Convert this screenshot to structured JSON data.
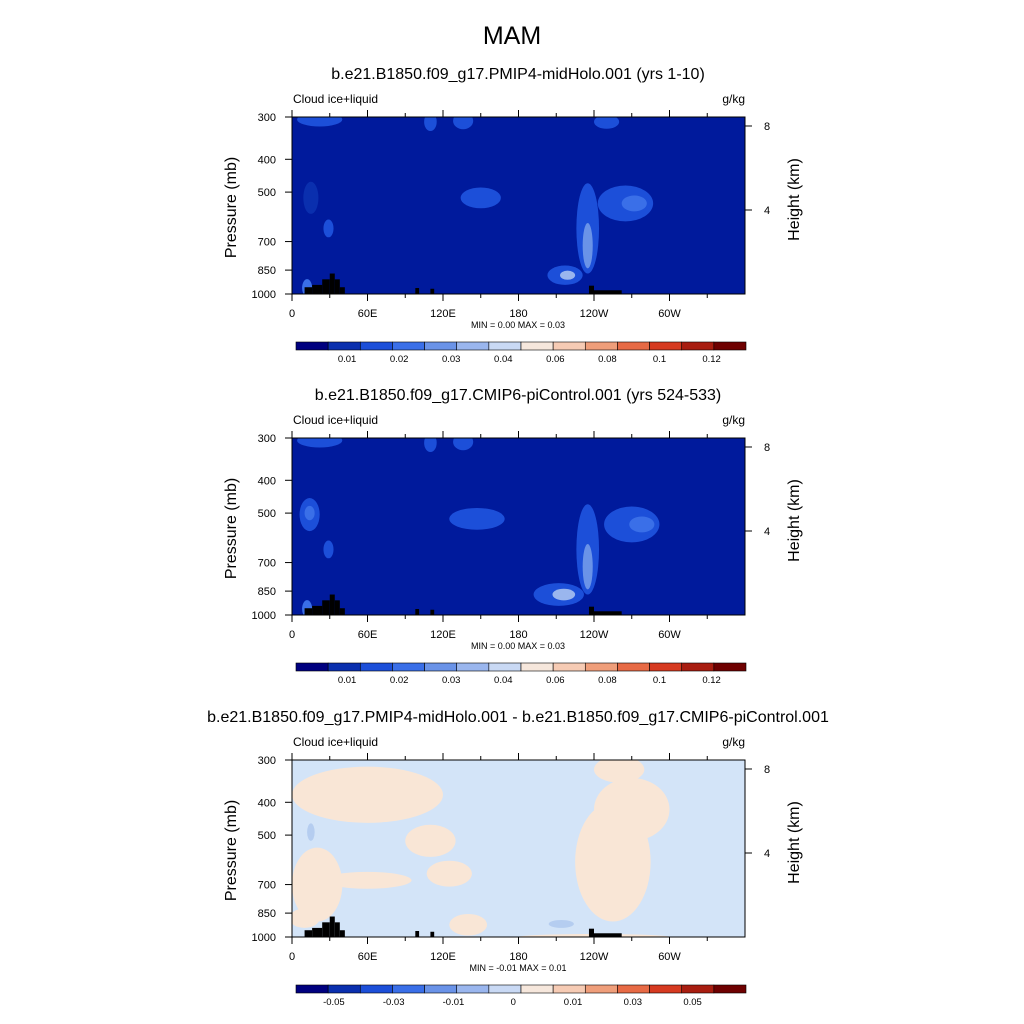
{
  "figure": {
    "title": "MAM"
  },
  "palette_base": [
    "#00007f",
    "#0a2fae",
    "#1c4fd9",
    "#3a6fe8",
    "#6a93e8",
    "#9ab6ee",
    "#c9d9f4",
    "#f6e7dc",
    "#f6cbb4",
    "#ef9e7a",
    "#e76a45",
    "#d63a20",
    "#a81d10",
    "#6e0000"
  ],
  "chart_data": [
    {
      "type": "heatmap",
      "title": "b.e21.B1850.f09_g17.PMIP4-midHolo.001 (yrs 1-10)",
      "left_label": "Cloud ice+liquid",
      "right_label": "g/kg",
      "ylabel": "Pressure (mb)",
      "ylabel_right": "Height (km)",
      "pressure_ticks": [
        "300",
        "400",
        "500",
        "700",
        "850",
        "1000"
      ],
      "height_ticks": [
        "8",
        "4"
      ],
      "lon_ticks": [
        "0",
        "60E",
        "120E",
        "180",
        "120W",
        "60W"
      ],
      "stats": "MIN =   0.00  MAX =   0.03",
      "colorbar_labels": [
        "0.01",
        "0.02",
        "0.03",
        "0.04",
        "0.06",
        "0.08",
        "0.1",
        "0.12"
      ],
      "background_color": "#001a9c",
      "blobs": [
        {
          "lon": 22,
          "p": 305,
          "rlon": 18,
          "rp": 15,
          "c": "#1c4fd9"
        },
        {
          "lon": 110,
          "p": 310,
          "rlon": 5,
          "rp": 20,
          "c": "#1c4fd9"
        },
        {
          "lon": 136,
          "p": 308,
          "rlon": 8,
          "rp": 18,
          "c": "#1c4fd9"
        },
        {
          "lon": 15,
          "p": 520,
          "rlon": 6,
          "rp": 60,
          "c": "#0a2fae"
        },
        {
          "lon": 29,
          "p": 640,
          "rlon": 4,
          "rp": 40,
          "c": "#1c4fd9"
        },
        {
          "lon": 150,
          "p": 520,
          "rlon": 16,
          "rp": 38,
          "c": "#1c4fd9"
        },
        {
          "lon": 265,
          "p": 540,
          "rlon": 22,
          "rp": 70,
          "c": "#1c4fd9"
        },
        {
          "lon": 272,
          "p": 540,
          "rlon": 10,
          "rp": 30,
          "c": "#3a6fe8"
        },
        {
          "lon": 235,
          "p": 640,
          "rlon": 9,
          "rp": 230,
          "c": "#1c4fd9"
        },
        {
          "lon": 235,
          "p": 720,
          "rlon": 4,
          "rp": 120,
          "c": "#6a93e8"
        },
        {
          "lon": 217,
          "p": 880,
          "rlon": 14,
          "rp": 60,
          "c": "#1c4fd9"
        },
        {
          "lon": 219,
          "p": 880,
          "rlon": 6,
          "rp": 28,
          "c": "#9ab6ee"
        },
        {
          "lon": 250,
          "p": 310,
          "rlon": 10,
          "rp": 15,
          "c": "#1c4fd9"
        },
        {
          "lon": 12,
          "p": 960,
          "rlon": 4,
          "rp": 60,
          "c": "#3a6fe8"
        }
      ],
      "land": [
        {
          "lon0": 10,
          "lon1": 16,
          "p0": 955
        },
        {
          "lon0": 16,
          "lon1": 24,
          "p0": 940
        },
        {
          "lon0": 24,
          "lon1": 30,
          "p0": 905
        },
        {
          "lon0": 30,
          "lon1": 34,
          "p0": 870
        },
        {
          "lon0": 34,
          "lon1": 38,
          "p0": 905
        },
        {
          "lon0": 38,
          "lon1": 42,
          "p0": 955
        },
        {
          "lon0": 98,
          "lon1": 101,
          "p0": 960
        },
        {
          "lon0": 110,
          "lon1": 113,
          "p0": 965
        },
        {
          "lon0": 236,
          "lon1": 240,
          "p0": 945
        },
        {
          "lon0": 240,
          "lon1": 262,
          "p0": 975
        }
      ]
    },
    {
      "type": "heatmap",
      "title": "b.e21.B1850.f09_g17.CMIP6-piControl.001 (yrs 524-533)",
      "left_label": "Cloud ice+liquid",
      "right_label": "g/kg",
      "ylabel": "Pressure (mb)",
      "ylabel_right": "Height (km)",
      "pressure_ticks": [
        "300",
        "400",
        "500",
        "700",
        "850",
        "1000"
      ],
      "height_ticks": [
        "8",
        "4"
      ],
      "lon_ticks": [
        "0",
        "60E",
        "120E",
        "180",
        "120W",
        "60W"
      ],
      "stats": "MIN =   0.00  MAX =   0.03",
      "colorbar_labels": [
        "0.01",
        "0.02",
        "0.03",
        "0.04",
        "0.06",
        "0.08",
        "0.1",
        "0.12"
      ],
      "background_color": "#001a9c",
      "blobs": [
        {
          "lon": 22,
          "p": 305,
          "rlon": 18,
          "rp": 15,
          "c": "#1c4fd9"
        },
        {
          "lon": 110,
          "p": 310,
          "rlon": 5,
          "rp": 20,
          "c": "#1c4fd9"
        },
        {
          "lon": 136,
          "p": 308,
          "rlon": 8,
          "rp": 18,
          "c": "#1c4fd9"
        },
        {
          "lon": 14,
          "p": 505,
          "rlon": 8,
          "rp": 60,
          "c": "#1c4fd9"
        },
        {
          "lon": 14,
          "p": 500,
          "rlon": 4,
          "rp": 25,
          "c": "#3a6fe8"
        },
        {
          "lon": 29,
          "p": 640,
          "rlon": 4,
          "rp": 40,
          "c": "#1c4fd9"
        },
        {
          "lon": 147,
          "p": 520,
          "rlon": 22,
          "rp": 40,
          "c": "#1c4fd9"
        },
        {
          "lon": 270,
          "p": 540,
          "rlon": 22,
          "rp": 70,
          "c": "#1c4fd9"
        },
        {
          "lon": 278,
          "p": 540,
          "rlon": 10,
          "rp": 30,
          "c": "#3a6fe8"
        },
        {
          "lon": 235,
          "p": 640,
          "rlon": 9,
          "rp": 230,
          "c": "#1c4fd9"
        },
        {
          "lon": 235,
          "p": 720,
          "rlon": 4,
          "rp": 120,
          "c": "#6a93e8"
        },
        {
          "lon": 212,
          "p": 870,
          "rlon": 20,
          "rp": 70,
          "c": "#1c4fd9"
        },
        {
          "lon": 216,
          "p": 870,
          "rlon": 9,
          "rp": 35,
          "c": "#9ab6ee"
        },
        {
          "lon": 12,
          "p": 960,
          "rlon": 4,
          "rp": 60,
          "c": "#3a6fe8"
        }
      ],
      "land": [
        {
          "lon0": 10,
          "lon1": 16,
          "p0": 955
        },
        {
          "lon0": 16,
          "lon1": 24,
          "p0": 940
        },
        {
          "lon0": 24,
          "lon1": 30,
          "p0": 905
        },
        {
          "lon0": 30,
          "lon1": 34,
          "p0": 870
        },
        {
          "lon0": 34,
          "lon1": 38,
          "p0": 905
        },
        {
          "lon0": 38,
          "lon1": 42,
          "p0": 955
        },
        {
          "lon0": 98,
          "lon1": 101,
          "p0": 960
        },
        {
          "lon0": 110,
          "lon1": 113,
          "p0": 965
        },
        {
          "lon0": 236,
          "lon1": 240,
          "p0": 945
        },
        {
          "lon0": 240,
          "lon1": 262,
          "p0": 975
        }
      ]
    },
    {
      "type": "heatmap",
      "title": "b.e21.B1850.f09_g17.PMIP4-midHolo.001 - b.e21.B1850.f09_g17.CMIP6-piControl.001",
      "left_label": "Cloud ice+liquid",
      "right_label": "g/kg",
      "ylabel": "Pressure (mb)",
      "ylabel_right": "Height (km)",
      "pressure_ticks": [
        "300",
        "400",
        "500",
        "700",
        "850",
        "1000"
      ],
      "height_ticks": [
        "8",
        "4"
      ],
      "lon_ticks": [
        "0",
        "60E",
        "120E",
        "180",
        "120W",
        "60W"
      ],
      "stats": "MIN =  -0.01  MAX =   0.01",
      "colorbar_labels": [
        "-0.05",
        "-0.03",
        "-0.01",
        "0",
        "0.01",
        "0.03",
        "0.05"
      ],
      "background_color": "#d3e4f8",
      "blobs": [
        {
          "lon": 60,
          "p": 380,
          "rlon": 60,
          "rp": 80,
          "c": "#f9e6d6"
        },
        {
          "lon": 20,
          "p": 700,
          "rlon": 20,
          "rp": 200,
          "c": "#f9e6d6"
        },
        {
          "lon": 60,
          "p": 680,
          "rlon": 35,
          "rp": 40,
          "c": "#f9e6d6"
        },
        {
          "lon": 110,
          "p": 520,
          "rlon": 20,
          "rp": 60,
          "c": "#f9e6d6"
        },
        {
          "lon": 125,
          "p": 650,
          "rlon": 18,
          "rp": 60,
          "c": "#f9e6d6"
        },
        {
          "lon": 255,
          "p": 600,
          "rlon": 30,
          "rp": 300,
          "c": "#f9e6d6"
        },
        {
          "lon": 270,
          "p": 420,
          "rlon": 30,
          "rp": 100,
          "c": "#f9e6d6"
        },
        {
          "lon": 260,
          "p": 320,
          "rlon": 20,
          "rp": 30,
          "c": "#f9e6d6"
        },
        {
          "lon": 10,
          "p": 880,
          "rlon": 12,
          "rp": 60,
          "c": "#f9e6d6"
        },
        {
          "lon": 140,
          "p": 920,
          "rlon": 15,
          "rp": 70,
          "c": "#f9e6d6"
        },
        {
          "lon": 15,
          "p": 490,
          "rlon": 3,
          "rp": 30,
          "c": "#b5cdf0"
        },
        {
          "lon": 214,
          "p": 915,
          "rlon": 10,
          "rp": 25,
          "c": "#b5cdf0"
        },
        {
          "lon": 240,
          "p": 1000,
          "rlon": 60,
          "rp": 20,
          "c": "#f9e6d6"
        }
      ],
      "land": [
        {
          "lon0": 10,
          "lon1": 16,
          "p0": 955
        },
        {
          "lon0": 16,
          "lon1": 24,
          "p0": 940
        },
        {
          "lon0": 24,
          "lon1": 30,
          "p0": 905
        },
        {
          "lon0": 30,
          "lon1": 34,
          "p0": 870
        },
        {
          "lon0": 34,
          "lon1": 38,
          "p0": 905
        },
        {
          "lon0": 38,
          "lon1": 42,
          "p0": 955
        },
        {
          "lon0": 98,
          "lon1": 101,
          "p0": 960
        },
        {
          "lon0": 110,
          "lon1": 113,
          "p0": 965
        },
        {
          "lon0": 236,
          "lon1": 240,
          "p0": 945
        },
        {
          "lon0": 240,
          "lon1": 262,
          "p0": 975
        }
      ]
    }
  ]
}
